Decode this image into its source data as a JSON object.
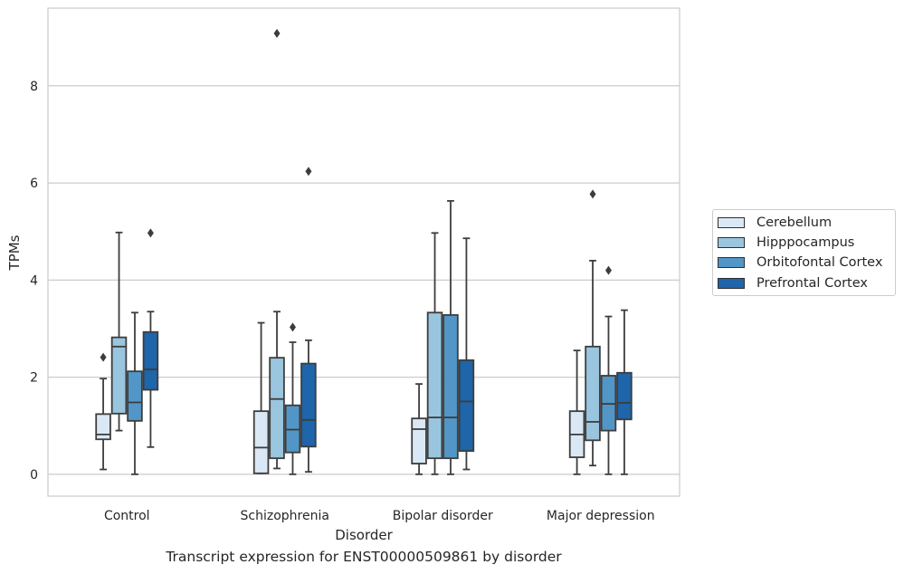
{
  "caption": "Transcript expression for ENST00000509861 by disorder",
  "chart_data": {
    "type": "box",
    "xlabel": "Disorder",
    "ylabel": "TPMs",
    "ylim": [
      -0.45,
      9.6
    ],
    "yticks": [
      "0",
      "2",
      "4",
      "6",
      "8"
    ],
    "grid": "horizontal",
    "legend_position": "right",
    "categories": [
      "Control",
      "Schizophrenia",
      "Bipolar disorder",
      "Major depression"
    ],
    "series": [
      {
        "name": "Cerebellum",
        "color": "#dae8f5",
        "boxes": [
          {
            "whisker_low": 0.1,
            "q1": 0.72,
            "median": 0.82,
            "q3": 1.24,
            "whisker_high": 1.97,
            "outliers": [
              2.41
            ]
          },
          {
            "whisker_low": 0.02,
            "q1": 0.02,
            "median": 0.55,
            "q3": 1.3,
            "whisker_high": 3.12,
            "outliers": []
          },
          {
            "whisker_low": 0.0,
            "q1": 0.22,
            "median": 0.93,
            "q3": 1.15,
            "whisker_high": 1.86,
            "outliers": []
          },
          {
            "whisker_low": 0.0,
            "q1": 0.35,
            "median": 0.82,
            "q3": 1.3,
            "whisker_high": 2.55,
            "outliers": []
          }
        ]
      },
      {
        "name": "Hipppocampus",
        "color": "#9ac5de",
        "boxes": [
          {
            "whisker_low": 0.9,
            "q1": 1.25,
            "median": 2.63,
            "q3": 2.82,
            "whisker_high": 4.98,
            "outliers": []
          },
          {
            "whisker_low": 0.12,
            "q1": 0.33,
            "median": 1.55,
            "q3": 2.4,
            "whisker_high": 3.35,
            "outliers": [
              9.08
            ]
          },
          {
            "whisker_low": 0.0,
            "q1": 0.33,
            "median": 1.17,
            "q3": 3.33,
            "whisker_high": 4.97,
            "outliers": []
          },
          {
            "whisker_low": 0.18,
            "q1": 0.7,
            "median": 1.08,
            "q3": 2.63,
            "whisker_high": 4.4,
            "outliers": [
              5.77
            ]
          }
        ]
      },
      {
        "name": "Orbitofontal Cortex",
        "color": "#5296c7",
        "boxes": [
          {
            "whisker_low": 0.0,
            "q1": 1.1,
            "median": 1.48,
            "q3": 2.12,
            "whisker_high": 3.33,
            "outliers": []
          },
          {
            "whisker_low": 0.0,
            "q1": 0.45,
            "median": 0.92,
            "q3": 1.42,
            "whisker_high": 2.72,
            "outliers": [
              3.03
            ]
          },
          {
            "whisker_low": 0.0,
            "q1": 0.33,
            "median": 1.17,
            "q3": 3.28,
            "whisker_high": 5.63,
            "outliers": []
          },
          {
            "whisker_low": 0.0,
            "q1": 0.9,
            "median": 1.45,
            "q3": 2.03,
            "whisker_high": 3.25,
            "outliers": [
              4.2
            ]
          }
        ]
      },
      {
        "name": "Prefrontal Cortex",
        "color": "#1f65a9",
        "boxes": [
          {
            "whisker_low": 0.56,
            "q1": 1.74,
            "median": 2.16,
            "q3": 2.93,
            "whisker_high": 3.35,
            "outliers": [
              4.97
            ]
          },
          {
            "whisker_low": 0.05,
            "q1": 0.57,
            "median": 1.12,
            "q3": 2.28,
            "whisker_high": 2.76,
            "outliers": [
              6.24
            ]
          },
          {
            "whisker_low": 0.1,
            "q1": 0.48,
            "median": 1.5,
            "q3": 2.35,
            "whisker_high": 4.86,
            "outliers": []
          },
          {
            "whisker_low": 0.0,
            "q1": 1.13,
            "median": 1.47,
            "q3": 2.09,
            "whisker_high": 3.38,
            "outliers": []
          }
        ]
      }
    ]
  }
}
